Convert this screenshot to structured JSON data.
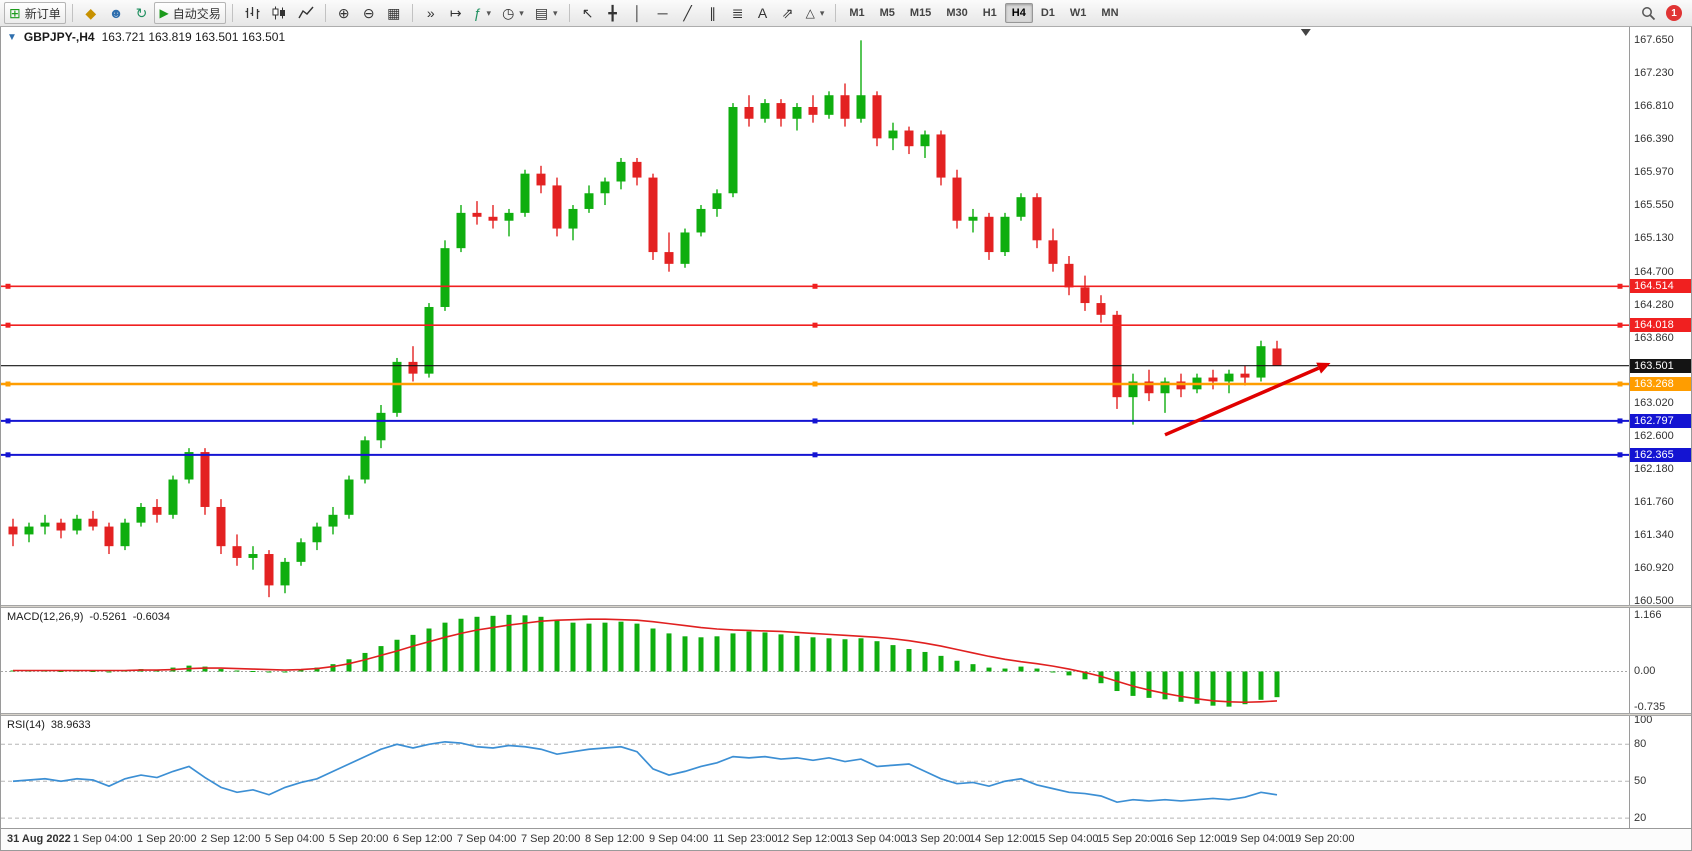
{
  "toolbar": {
    "new_order_label": "新订单",
    "autotrading_label": "自动交易",
    "timeframes": [
      "M1",
      "M5",
      "M15",
      "M30",
      "H1",
      "H4",
      "D1",
      "W1",
      "MN"
    ],
    "active_timeframe": "H4",
    "notification_count": "1"
  },
  "icons": {
    "collapse": "▼",
    "new_order": "⊞",
    "alerts": "◆",
    "profiles": "☻",
    "refresh": "↻",
    "autoplay": "▶",
    "zoom_in": "⊕",
    "zoom_out": "⊖",
    "tile": "▦",
    "auto_scroll": "»",
    "chart_shift": "↦",
    "indicators": "ƒ",
    "clock": "◷",
    "template": "▤",
    "caret": "▾",
    "cursor": "↖",
    "crosshair": "╋",
    "vline": "│",
    "hline": "─",
    "trend": "╱",
    "channel": "∥",
    "fibo": "≣",
    "text": "A",
    "arrow": "⇗",
    "shape": "△"
  },
  "chart_data": {
    "type": "candlestick",
    "symbol": "GBPJPY-",
    "period": "H4",
    "chart_title": {
      "symbol": "GBPJPY-,H4",
      "ohlc": "163.721 163.819 163.501 163.501"
    },
    "colors": {
      "up": "#0fae0f",
      "down": "#e32222",
      "macd_hist": "#0fae0f",
      "macd_signal": "#e02020",
      "rsi": "#3c8fd4",
      "arrow": "#e00000"
    },
    "price_axis": {
      "min": 160.45,
      "max": 167.82,
      "ticks": [
        "167.650",
        "167.230",
        "166.810",
        "166.390",
        "165.970",
        "165.550",
        "165.130",
        "164.700",
        "164.280",
        "163.860",
        "163.020",
        "162.600",
        "162.180",
        "161.760",
        "161.340",
        "160.920",
        "160.500"
      ]
    },
    "price_lines": [
      {
        "price": 164.514,
        "label": "164.514",
        "color": "#f02020",
        "width": 1.6,
        "handles": true
      },
      {
        "price": 164.018,
        "label": "164.018",
        "color": "#f02020",
        "width": 1.6,
        "handles": true
      },
      {
        "price": 163.501,
        "label": "163.501",
        "color": "#141414",
        "width": 1.1,
        "handles": false
      },
      {
        "price": 163.268,
        "label": "163.268",
        "color": "#ff9d00",
        "width": 2.4,
        "handles": true
      },
      {
        "price": 162.797,
        "label": "162.797",
        "color": "#1414d2",
        "width": 2.0,
        "handles": true
      },
      {
        "price": 162.365,
        "label": "162.365",
        "color": "#1414d2",
        "width": 2.0,
        "handles": true
      }
    ],
    "trend_arrow": {
      "from_candle": 72,
      "from_price": 162.62,
      "to_candle": 81.6,
      "to_price": 163.47,
      "color": "#e00000"
    },
    "end_marker_candle": 80.8,
    "label_every_n_candles": 4,
    "time_labels": [
      "31 Aug 2022",
      "1 Sep 04:00",
      "1 Sep 20:00",
      "2 Sep 12:00",
      "5 Sep 04:00",
      "5 Sep 20:00",
      "6 Sep 12:00",
      "7 Sep 04:00",
      "7 Sep 20:00",
      "8 Sep 12:00",
      "9 Sep 04:00",
      "11 Sep 23:00",
      "12 Sep 12:00",
      "13 Sep 04:00",
      "13 Sep 20:00",
      "14 Sep 12:00",
      "15 Sep 04:00",
      "15 Sep 20:00",
      "16 Sep 12:00",
      "19 Sep 04:00",
      "19 Sep 20:00"
    ],
    "ohlc": [
      [
        161.45,
        161.55,
        161.2,
        161.35
      ],
      [
        161.35,
        161.5,
        161.25,
        161.45
      ],
      [
        161.45,
        161.6,
        161.35,
        161.5
      ],
      [
        161.5,
        161.55,
        161.3,
        161.4
      ],
      [
        161.4,
        161.6,
        161.35,
        161.55
      ],
      [
        161.55,
        161.65,
        161.4,
        161.45
      ],
      [
        161.45,
        161.5,
        161.1,
        161.2
      ],
      [
        161.2,
        161.55,
        161.15,
        161.5
      ],
      [
        161.5,
        161.75,
        161.45,
        161.7
      ],
      [
        161.7,
        161.8,
        161.5,
        161.6
      ],
      [
        161.6,
        162.1,
        161.55,
        162.05
      ],
      [
        162.05,
        162.45,
        162.0,
        162.4
      ],
      [
        162.4,
        162.45,
        161.6,
        161.7
      ],
      [
        161.7,
        161.8,
        161.1,
        161.2
      ],
      [
        161.2,
        161.35,
        160.95,
        161.05
      ],
      [
        161.05,
        161.2,
        160.9,
        161.1
      ],
      [
        161.1,
        161.15,
        160.55,
        160.7
      ],
      [
        160.7,
        161.05,
        160.6,
        161.0
      ],
      [
        161.0,
        161.3,
        160.95,
        161.25
      ],
      [
        161.25,
        161.5,
        161.15,
        161.45
      ],
      [
        161.45,
        161.7,
        161.35,
        161.6
      ],
      [
        161.6,
        162.1,
        161.55,
        162.05
      ],
      [
        162.05,
        162.6,
        162.0,
        162.55
      ],
      [
        162.55,
        163.0,
        162.45,
        162.9
      ],
      [
        162.9,
        163.6,
        162.85,
        163.55
      ],
      [
        163.55,
        163.75,
        163.3,
        163.4
      ],
      [
        163.4,
        164.3,
        163.35,
        164.25
      ],
      [
        164.25,
        165.1,
        164.2,
        165.0
      ],
      [
        165.0,
        165.55,
        164.95,
        165.45
      ],
      [
        165.45,
        165.6,
        165.3,
        165.4
      ],
      [
        165.4,
        165.55,
        165.25,
        165.35
      ],
      [
        165.35,
        165.5,
        165.15,
        165.45
      ],
      [
        165.45,
        166.0,
        165.4,
        165.95
      ],
      [
        165.95,
        166.05,
        165.7,
        165.8
      ],
      [
        165.8,
        165.9,
        165.15,
        165.25
      ],
      [
        165.25,
        165.55,
        165.1,
        165.5
      ],
      [
        165.5,
        165.8,
        165.45,
        165.7
      ],
      [
        165.7,
        165.9,
        165.55,
        165.85
      ],
      [
        165.85,
        166.15,
        165.75,
        166.1
      ],
      [
        166.1,
        166.15,
        165.8,
        165.9
      ],
      [
        165.9,
        165.95,
        164.85,
        164.95
      ],
      [
        164.95,
        165.2,
        164.7,
        164.8
      ],
      [
        164.8,
        165.25,
        164.75,
        165.2
      ],
      [
        165.2,
        165.55,
        165.15,
        165.5
      ],
      [
        165.5,
        165.75,
        165.4,
        165.7
      ],
      [
        165.7,
        166.85,
        165.65,
        166.8
      ],
      [
        166.8,
        166.95,
        166.55,
        166.65
      ],
      [
        166.65,
        166.9,
        166.6,
        166.85
      ],
      [
        166.85,
        166.9,
        166.55,
        166.65
      ],
      [
        166.65,
        166.85,
        166.5,
        166.8
      ],
      [
        166.8,
        166.95,
        166.6,
        166.7
      ],
      [
        166.7,
        167.0,
        166.65,
        166.95
      ],
      [
        166.95,
        167.1,
        166.55,
        166.65
      ],
      [
        166.65,
        167.65,
        166.6,
        166.95
      ],
      [
        166.95,
        167.0,
        166.3,
        166.4
      ],
      [
        166.4,
        166.6,
        166.25,
        166.5
      ],
      [
        166.5,
        166.55,
        166.2,
        166.3
      ],
      [
        166.3,
        166.5,
        166.15,
        166.45
      ],
      [
        166.45,
        166.5,
        165.8,
        165.9
      ],
      [
        165.9,
        166.0,
        165.25,
        165.35
      ],
      [
        165.35,
        165.5,
        165.2,
        165.4
      ],
      [
        165.4,
        165.45,
        164.85,
        164.95
      ],
      [
        164.95,
        165.45,
        164.9,
        165.4
      ],
      [
        165.4,
        165.7,
        165.35,
        165.65
      ],
      [
        165.65,
        165.7,
        165.0,
        165.1
      ],
      [
        165.1,
        165.25,
        164.7,
        164.8
      ],
      [
        164.8,
        164.9,
        164.4,
        164.5
      ],
      [
        164.5,
        164.65,
        164.2,
        164.3
      ],
      [
        164.3,
        164.4,
        164.05,
        164.15
      ],
      [
        164.15,
        164.2,
        162.95,
        163.1
      ],
      [
        163.1,
        163.4,
        162.75,
        163.3
      ],
      [
        163.3,
        163.45,
        163.05,
        163.15
      ],
      [
        163.15,
        163.35,
        162.9,
        163.3
      ],
      [
        163.3,
        163.4,
        163.1,
        163.2
      ],
      [
        163.2,
        163.4,
        163.15,
        163.35
      ],
      [
        163.35,
        163.45,
        163.2,
        163.3
      ],
      [
        163.3,
        163.45,
        163.15,
        163.4
      ],
      [
        163.4,
        163.5,
        163.25,
        163.35
      ],
      [
        163.35,
        163.82,
        163.3,
        163.75
      ],
      [
        163.721,
        163.819,
        163.501,
        163.501
      ]
    ],
    "macd": {
      "label": "MACD(12,26,9)",
      "value1": "-0.5261",
      "value2": "-0.6034",
      "axis": {
        "min": -0.85,
        "max": 1.3,
        "ticks": [
          {
            "v": 1.166,
            "t": "1.166"
          },
          {
            "v": 0,
            "t": "0.00"
          },
          {
            "v": -0.735,
            "t": "-0.735"
          }
        ]
      },
      "hist": [
        0.02,
        0.03,
        0.02,
        0.01,
        0.02,
        0.01,
        -0.01,
        0.02,
        0.05,
        0.04,
        0.08,
        0.12,
        0.1,
        0.05,
        0.02,
        0.01,
        -0.02,
        0.0,
        0.04,
        0.08,
        0.15,
        0.25,
        0.38,
        0.52,
        0.65,
        0.75,
        0.88,
        1.0,
        1.08,
        1.12,
        1.14,
        1.16,
        1.15,
        1.12,
        1.05,
        1.0,
        0.98,
        1.0,
        1.02,
        0.98,
        0.88,
        0.78,
        0.72,
        0.7,
        0.72,
        0.78,
        0.82,
        0.8,
        0.76,
        0.73,
        0.7,
        0.68,
        0.66,
        0.68,
        0.62,
        0.54,
        0.46,
        0.4,
        0.32,
        0.22,
        0.15,
        0.08,
        0.06,
        0.1,
        0.06,
        -0.02,
        -0.08,
        -0.16,
        -0.24,
        -0.4,
        -0.5,
        -0.54,
        -0.57,
        -0.62,
        -0.66,
        -0.7,
        -0.72,
        -0.67,
        -0.58,
        -0.5261
      ],
      "signal": [
        0.02,
        0.02,
        0.02,
        0.02,
        0.02,
        0.02,
        0.02,
        0.02,
        0.03,
        0.03,
        0.04,
        0.06,
        0.07,
        0.07,
        0.06,
        0.05,
        0.04,
        0.03,
        0.04,
        0.06,
        0.1,
        0.16,
        0.24,
        0.33,
        0.42,
        0.52,
        0.61,
        0.7,
        0.78,
        0.85,
        0.9,
        0.95,
        0.99,
        1.03,
        1.05,
        1.06,
        1.07,
        1.07,
        1.06,
        1.05,
        1.02,
        0.98,
        0.94,
        0.9,
        0.87,
        0.85,
        0.84,
        0.83,
        0.82,
        0.8,
        0.78,
        0.76,
        0.74,
        0.72,
        0.7,
        0.67,
        0.63,
        0.58,
        0.52,
        0.45,
        0.38,
        0.31,
        0.25,
        0.2,
        0.16,
        0.11,
        0.05,
        -0.02,
        -0.1,
        -0.2,
        -0.3,
        -0.38,
        -0.45,
        -0.51,
        -0.56,
        -0.6,
        -0.62,
        -0.63,
        -0.62,
        -0.6034
      ]
    },
    "rsi": {
      "label": "RSI(14)",
      "value": "38.9633",
      "axis": {
        "min": 12,
        "max": 103,
        "ticks": [
          {
            "v": 100,
            "t": "100"
          },
          {
            "v": 80,
            "t": "80"
          },
          {
            "v": 50,
            "t": "50"
          },
          {
            "v": 20,
            "t": "20"
          }
        ]
      },
      "levels": [
        80,
        50,
        20
      ],
      "values": [
        50,
        51,
        52,
        50,
        52,
        51,
        46,
        52,
        55,
        53,
        58,
        62,
        53,
        45,
        41,
        43,
        39,
        45,
        49,
        52,
        58,
        64,
        70,
        76,
        80,
        77,
        80,
        82,
        81,
        78,
        77,
        79,
        78,
        76,
        72,
        74,
        76,
        77,
        78,
        74,
        60,
        55,
        58,
        62,
        65,
        70,
        69,
        70,
        68,
        69,
        67,
        69,
        66,
        68,
        62,
        63,
        64,
        58,
        52,
        48,
        49,
        46,
        50,
        52,
        47,
        44,
        41,
        40,
        38,
        33,
        35,
        34,
        35,
        34,
        35,
        36,
        35,
        37,
        41,
        38.9633
      ]
    }
  }
}
